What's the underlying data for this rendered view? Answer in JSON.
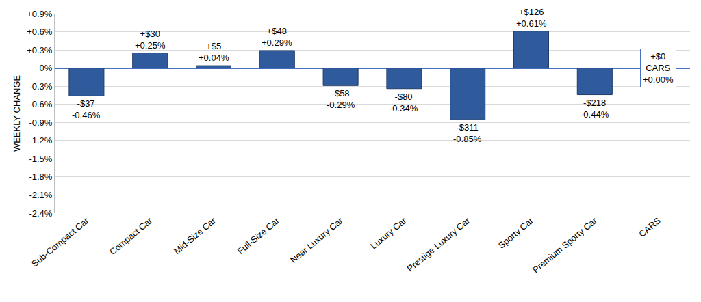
{
  "chart_data": {
    "type": "bar",
    "y_label": "WEEKLY CHANGE",
    "categories": [
      "Sub-Compact Car",
      "Compact Car",
      "Mid-Size Car",
      "Full-Size Car",
      "Near Luxury Car",
      "Luxury Car",
      "Prestige Luxury Car",
      "Sporty Car",
      "Premium Sporty Car",
      "CARS"
    ],
    "values": [
      -0.46,
      0.25,
      0.04,
      0.29,
      -0.29,
      -0.34,
      -0.85,
      0.61,
      -0.44,
      0.0
    ],
    "value_labels": [
      "-$37\n-0.46%",
      "+$30\n+0.25%",
      "+$5\n+0.04%",
      "+$48\n+0.29%",
      "-$58\n-0.29%",
      "-$80\n-0.34%",
      "-$311\n-0.85%",
      "+$126\n+0.61%",
      "-$218\n-0.44%",
      "+$0\nCARS\n+0.00%"
    ],
    "color": "#2f5b9c",
    "ylim": [
      -2.4,
      0.9
    ],
    "yticks": [
      {
        "value": 0.9,
        "label": "+0.9%"
      },
      {
        "value": 0.6,
        "label": "+0.6%"
      },
      {
        "value": 0.3,
        "label": "+0.3%"
      },
      {
        "value": 0,
        "label": "0%"
      },
      {
        "value": -0.3,
        "label": "-0.3%"
      },
      {
        "value": -0.6,
        "label": "-0.6%"
      },
      {
        "value": -0.9,
        "label": "-0.9%"
      },
      {
        "value": -1.2,
        "label": "-1.2%"
      },
      {
        "value": -1.5,
        "label": "-1.5%"
      },
      {
        "value": -1.8,
        "label": "-1.8%"
      },
      {
        "value": -2.1,
        "label": "-2.1%"
      },
      {
        "value": -2.4,
        "label": "-2.4%"
      }
    ],
    "grid": true,
    "data_labels": true
  }
}
